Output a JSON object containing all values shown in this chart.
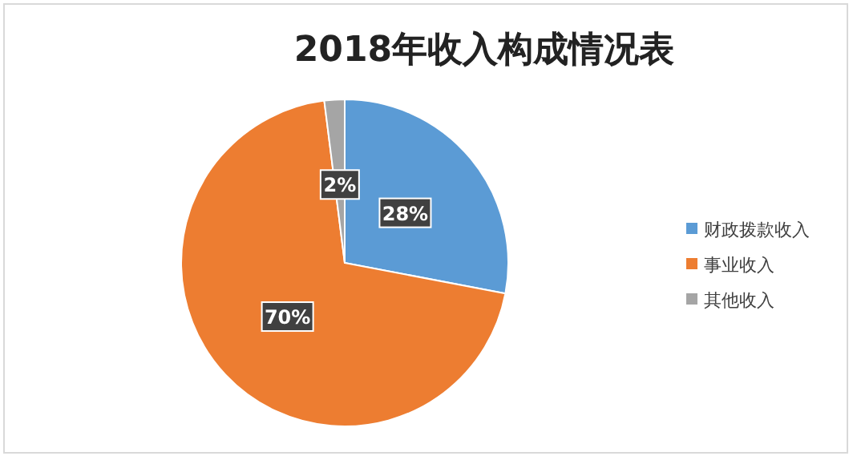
{
  "chart_data": {
    "type": "pie",
    "title": "2018年收入构成情况表",
    "categories": [
      "财政拨款收入",
      "事业收入",
      "其他收入"
    ],
    "values": [
      28,
      70,
      2
    ],
    "colors": [
      "#5b9bd5",
      "#ed7d31",
      "#a5a5a5"
    ],
    "value_labels": [
      "28%",
      "70%",
      "2%"
    ],
    "legend": "right"
  }
}
